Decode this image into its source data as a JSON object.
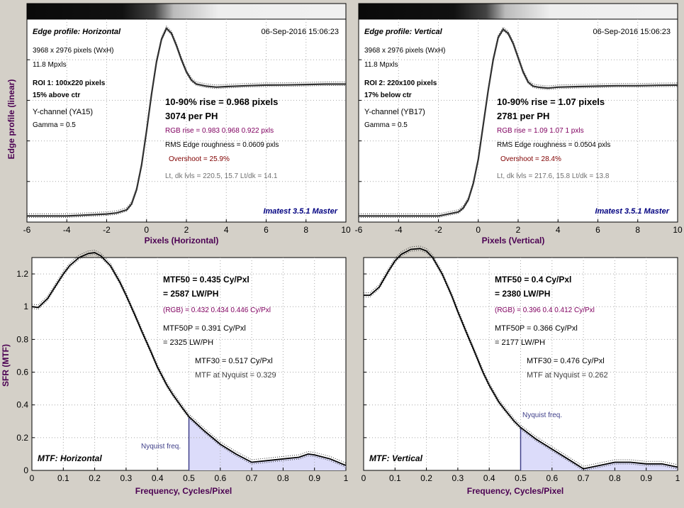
{
  "shared": {
    "edge_ylabel": "Edge profile (linear)",
    "mtf_ylabel": "SFR (MTF)",
    "mtf_xlabel": "Frequency, Cycles/Pixel",
    "edge_xticks": [
      "-6",
      "-4",
      "-2",
      "0",
      "2",
      "4",
      "6",
      "8",
      "10"
    ],
    "mtf_yticks": [
      "0",
      "0.2",
      "0.4",
      "0.6",
      "0.8",
      "1",
      "1.2"
    ],
    "mtf_xticks": [
      "0",
      "0.1",
      "0.2",
      "0.3",
      "0.4",
      "0.5",
      "0.6",
      "0.7",
      "0.8",
      "0.9",
      "1"
    ],
    "colors": {
      "purple": "#800060",
      "label": "#4b0052",
      "navy": "#000080",
      "gray": "#707070",
      "nyq": "#40408a",
      "fill": "#dcdcfa"
    }
  },
  "panels": [
    {
      "title": "Edge profile: Horizontal",
      "date": "06-Sep-2016 15:06:23",
      "info1": "3968 x 2976 pixels (WxH)",
      "info2": "11.8 Mpxls",
      "roi": "ROI 1:  100x220 pixels",
      "pos": "15% above ctr",
      "channel": "Y-channel  (YA15)",
      "gamma": "Gamma = 0.5",
      "rise": "10-90% rise = 0.968 pixels",
      "ph": "3074 per PH",
      "rgb": "RGB rise = 0.983  0.968  0.922 pxls",
      "rms": "RMS Edge roughness = 0.0609 pxls",
      "overshoot": "Overshoot = 25.9%",
      "levels": "Lt, dk lvls = 220.5, 15.7   Lt/dk = 14.1",
      "brand": "Imatest 3.5.1 Master",
      "xlabel": "Pixels (Horizontal)"
    },
    {
      "title": "Edge profile: Vertical",
      "date": "06-Sep-2016 15:06:23",
      "info1": "3968 x 2976 pixels (WxH)",
      "info2": "11.8 Mpxls",
      "roi": "ROI 2:  220x100 pixels",
      "pos": "17% below ctr",
      "channel": "Y-channel  (YB17)",
      "gamma": "Gamma = 0.5",
      "rise": "10-90% rise = 1.07 pixels",
      "ph": "2781 per PH",
      "rgb": "RGB rise = 1.09  1.07  1 pxls",
      "rms": "RMS Edge roughness = 0.0504 pxls",
      "overshoot": "Overshoot = 28.4%",
      "levels": "Lt, dk lvls = 217.6, 15.8   Lt/dk = 13.8",
      "brand": "Imatest 3.5.1 Master",
      "xlabel": "Pixels (Vertical)"
    },
    {
      "mtf50": "MTF50 = 0.435 Cy/Pxl",
      "lwph": "= 2587 LW/PH",
      "rgb": "(RGB) = 0.432  0.434  0.446 Cy/Pxl",
      "mtf50p": "MTF50P = 0.391 Cy/Pxl",
      "mtf50p_lw": "= 2325 LW/PH",
      "mtf30": "MTF30 = 0.517 Cy/Pxl",
      "nyq_value": "MTF at Nyquist = 0.329",
      "nyq_label": "Nyquist freq.",
      "name": "MTF: Horizontal"
    },
    {
      "mtf50": "MTF50 = 0.4 Cy/Pxl",
      "lwph": "= 2380 LW/PH",
      "rgb": "(RGB) = 0.396  0.4  0.412 Cy/Pxl",
      "mtf50p": "MTF50P = 0.366 Cy/Pxl",
      "mtf50p_lw": "= 2177 LW/PH",
      "mtf30": "MTF30 = 0.476 Cy/Pxl",
      "nyq_value": "MTF at Nyquist = 0.262",
      "nyq_label": "Nyquist freq.",
      "name": "MTF: Vertical"
    }
  ],
  "chart_data": [
    {
      "type": "line",
      "title": "Edge profile: Horizontal",
      "xlabel": "Pixels (Horizontal)",
      "ylabel": "Edge profile (linear)",
      "xlim": [
        -6,
        10
      ],
      "ylim": [
        0,
        1
      ],
      "grid": true,
      "series": [
        {
          "x": [
            -6,
            -5,
            -4,
            -3,
            -2,
            -1.5,
            -1,
            -0.75,
            -0.5,
            -0.25,
            0,
            0.25,
            0.5,
            0.75,
            1,
            1.25,
            1.5,
            1.75,
            2,
            2.25,
            2.5,
            2.75,
            3,
            3.5,
            4,
            5,
            6,
            7,
            8,
            9,
            10
          ],
          "y": [
            0.03,
            0.03,
            0.03,
            0.035,
            0.04,
            0.045,
            0.06,
            0.09,
            0.16,
            0.28,
            0.45,
            0.63,
            0.79,
            0.9,
            0.955,
            0.93,
            0.87,
            0.8,
            0.74,
            0.7,
            0.68,
            0.675,
            0.67,
            0.665,
            0.668,
            0.672,
            0.675,
            0.676,
            0.678,
            0.68,
            0.68
          ]
        }
      ]
    },
    {
      "type": "line",
      "title": "Edge profile: Vertical",
      "xlabel": "Pixels (Vertical)",
      "ylabel": "Edge profile (linear)",
      "xlim": [
        -6,
        10
      ],
      "ylim": [
        0,
        1
      ],
      "grid": true,
      "series": [
        {
          "x": [
            -6,
            -5,
            -4,
            -3,
            -2,
            -1.5,
            -1,
            -0.75,
            -0.5,
            -0.25,
            0,
            0.25,
            0.5,
            0.75,
            1,
            1.25,
            1.5,
            1.75,
            2,
            2.25,
            2.5,
            2.75,
            3,
            3.5,
            4,
            5,
            6,
            7,
            8,
            9,
            10
          ],
          "y": [
            0.03,
            0.03,
            0.03,
            0.03,
            0.03,
            0.04,
            0.05,
            0.07,
            0.11,
            0.19,
            0.31,
            0.48,
            0.65,
            0.8,
            0.91,
            0.95,
            0.93,
            0.88,
            0.81,
            0.74,
            0.69,
            0.67,
            0.665,
            0.66,
            0.665,
            0.668,
            0.67,
            0.672,
            0.672,
            0.674,
            0.675
          ]
        }
      ]
    },
    {
      "type": "line",
      "title": "MTF: Horizontal",
      "xlabel": "Frequency, Cycles/Pixel",
      "ylabel": "SFR (MTF)",
      "xlim": [
        0,
        1
      ],
      "ylim": [
        0,
        1.3
      ],
      "grid": true,
      "nyquist": 0.5,
      "series": [
        {
          "x": [
            0,
            0.02,
            0.05,
            0.08,
            0.1,
            0.12,
            0.15,
            0.18,
            0.2,
            0.22,
            0.25,
            0.28,
            0.3,
            0.33,
            0.35,
            0.38,
            0.4,
            0.43,
            0.45,
            0.48,
            0.5,
            0.55,
            0.6,
            0.65,
            0.7,
            0.75,
            0.8,
            0.85,
            0.88,
            0.9,
            0.95,
            1
          ],
          "y": [
            1,
            0.995,
            1.05,
            1.14,
            1.2,
            1.25,
            1.3,
            1.325,
            1.33,
            1.31,
            1.25,
            1.15,
            1.07,
            0.94,
            0.85,
            0.72,
            0.63,
            0.52,
            0.46,
            0.38,
            0.329,
            0.24,
            0.16,
            0.1,
            0.05,
            0.06,
            0.07,
            0.08,
            0.1,
            0.095,
            0.07,
            0.03
          ]
        }
      ]
    },
    {
      "type": "line",
      "title": "MTF: Vertical",
      "xlabel": "Frequency, Cycles/Pixel",
      "ylabel": "SFR (MTF)",
      "xlim": [
        0,
        1
      ],
      "ylim": [
        0,
        1.3
      ],
      "grid": true,
      "nyquist": 0.5,
      "series": [
        {
          "x": [
            0,
            0.02,
            0.05,
            0.08,
            0.1,
            0.12,
            0.15,
            0.18,
            0.2,
            0.22,
            0.25,
            0.28,
            0.3,
            0.33,
            0.35,
            0.38,
            0.4,
            0.43,
            0.45,
            0.48,
            0.5,
            0.55,
            0.6,
            0.65,
            0.7,
            0.75,
            0.8,
            0.85,
            0.9,
            0.95,
            1
          ],
          "y": [
            1.07,
            1.07,
            1.12,
            1.22,
            1.28,
            1.32,
            1.35,
            1.355,
            1.34,
            1.3,
            1.2,
            1.07,
            0.97,
            0.83,
            0.74,
            0.6,
            0.52,
            0.42,
            0.37,
            0.3,
            0.262,
            0.19,
            0.13,
            0.07,
            0.01,
            0.03,
            0.05,
            0.05,
            0.04,
            0.04,
            0.02
          ]
        }
      ]
    }
  ]
}
